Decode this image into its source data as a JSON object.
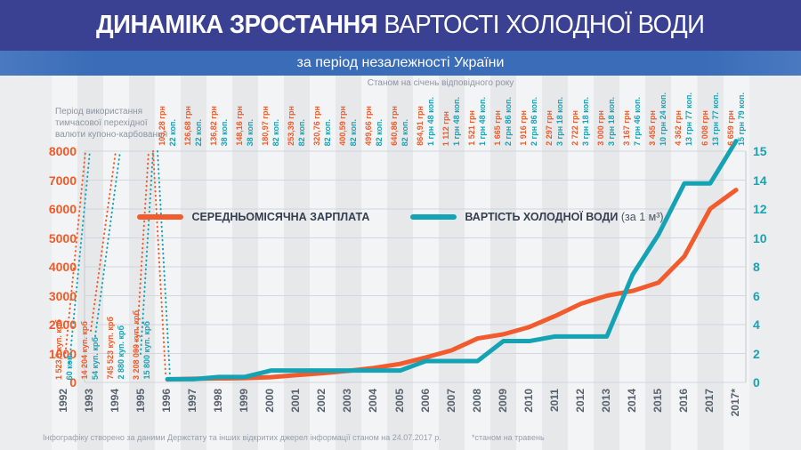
{
  "header": {
    "title_bold": "ДИНАМІКА ЗРОСТАННЯ",
    "title_rest": " ВАРТОСТІ ХОЛОДНОЇ ВОДИ",
    "subtitle": "за період незалежності України"
  },
  "annotations": {
    "top_note": "Станом на січень відповідного року",
    "left_note": "Період використання\nтимчасової перехідної\nвалюти купоно-карбованця",
    "footnote_left": "Інфографіку створено за даними Держстату та інших відкритих джерел інформації станом на  24.07.2017 р.",
    "footnote_right": "*станом на травень"
  },
  "colors": {
    "header_bg": "#3a4092",
    "subtitle_bg": "#3a6cb7",
    "salary": "#f15b2d",
    "water": "#14a3b4",
    "grid": "#d3d6da",
    "plot_border": "#c6cad0",
    "stripe_light": "#f3f4f5",
    "stripe_dark": "#e6e8ea"
  },
  "legend": {
    "items": [
      {
        "label": "СЕРЕДНЬОМІСЯЧНА ЗАРПЛАТА",
        "suffix": "",
        "color": "#f15b2d"
      },
      {
        "label": "ВАРТІСТЬ ХОЛОДНОЇ ВОДИ",
        "suffix": " (за 1 м³)",
        "color": "#14a3b4"
      }
    ]
  },
  "chart_data": {
    "type": "line",
    "title": "ДИНАМІКА ЗРОСТАННЯ ВАРТОСТІ ХОЛОДНОЇ ВОДИ за період незалежності України",
    "x": [
      "1992",
      "1993",
      "1994",
      "1995",
      "1996",
      "1997",
      "1998",
      "1999",
      "2000",
      "2001",
      "2002",
      "2003",
      "2004",
      "2005",
      "2006",
      "2007",
      "2008",
      "2009",
      "2010",
      "2011",
      "2012",
      "2013",
      "2014",
      "2015",
      "2016",
      "2017",
      "2017*"
    ],
    "series": [
      {
        "name": "СЕРЕДНЬОМІСЯЧНА ЗАРПЛАТА",
        "axis": "left",
        "color": "#f15b2d",
        "start_index": 4,
        "values": [
          103.28,
          126.68,
          136.82,
          148.16,
          180.97,
          253.39,
          320.76,
          400.59,
          499.66,
          640.86,
          864.91,
          1112,
          1521,
          1665,
          1916,
          2297,
          2722,
          3000,
          3167,
          3455,
          4362,
          6008,
          6659
        ]
      },
      {
        "name": "ВАРТІСТЬ ХОЛОДНОЇ ВОДИ (за 1 м³)",
        "axis": "right",
        "color": "#14a3b4",
        "start_index": 4,
        "values": [
          0.22,
          0.22,
          0.38,
          0.38,
          0.82,
          0.82,
          0.82,
          0.82,
          0.82,
          0.82,
          1.48,
          1.48,
          1.48,
          2.86,
          2.86,
          3.18,
          3.18,
          3.18,
          7.46,
          10.24,
          13.77,
          13.77,
          15.79
        ]
      }
    ],
    "left_axis": {
      "ticks": [
        0,
        1000,
        2000,
        3000,
        4000,
        5000,
        6000,
        7000,
        8000
      ],
      "ylim": [
        0,
        8000
      ]
    },
    "right_axis": {
      "tick_labels_bottom_to_top": [
        "0",
        "2",
        "4",
        "6",
        "8",
        "10",
        "12",
        "14",
        "15"
      ]
    },
    "grid": "horizontal",
    "legend_position": "upper-center-inside",
    "point_labels": [
      {
        "x": "1992",
        "salary": "1 523,5 куп. крб",
        "water": "60 коп.",
        "position": "bottom"
      },
      {
        "x": "1993",
        "salary": "14 204 куп. крб",
        "water": "54 куп. крб",
        "position": "bottom"
      },
      {
        "x": "1994",
        "salary": "745 523 куп. крб",
        "water": "2 880 куп. крб",
        "position": "bottom"
      },
      {
        "x": "1995",
        "salary": "3 208 000 куп. крб",
        "water": "15 800 куп. крб",
        "position": "bottom"
      },
      {
        "x": "1996",
        "salary": "103,28 грн",
        "water": "22 коп.",
        "position": "top"
      },
      {
        "x": "1997",
        "salary": "126,68 грн",
        "water": "22 коп.",
        "position": "top"
      },
      {
        "x": "1998",
        "salary": "136,82 грн",
        "water": "38 коп.",
        "position": "top"
      },
      {
        "x": "1999",
        "salary": "148,16 грн",
        "water": "38 коп.",
        "position": "top"
      },
      {
        "x": "2000",
        "salary": "180,97 грн",
        "water": "82 коп.",
        "position": "top"
      },
      {
        "x": "2001",
        "salary": "253,39 грн",
        "water": "82 коп.",
        "position": "top"
      },
      {
        "x": "2002",
        "salary": "320,76 грн",
        "water": "82 коп.",
        "position": "top"
      },
      {
        "x": "2003",
        "salary": "400,59 грн",
        "water": "82 коп.",
        "position": "top"
      },
      {
        "x": "2004",
        "salary": "499,66 грн",
        "water": "82 коп.",
        "position": "top"
      },
      {
        "x": "2005",
        "salary": "640,86 грн",
        "water": "82 коп.",
        "position": "top"
      },
      {
        "x": "2006",
        "salary": "864,91 грн",
        "water": "1 грн 48 коп.",
        "position": "top"
      },
      {
        "x": "2007",
        "salary": "1 112 грн",
        "water": "1 грн 48 коп.",
        "position": "top"
      },
      {
        "x": "2008",
        "salary": "1 521 грн",
        "water": "1 грн 48 коп.",
        "position": "top"
      },
      {
        "x": "2009",
        "salary": "1 665 грн",
        "water": "2 грн 86 коп.",
        "position": "top"
      },
      {
        "x": "2010",
        "salary": "1 916 грн",
        "water": "2 грн 86 коп.",
        "position": "top"
      },
      {
        "x": "2011",
        "salary": "2 297 грн",
        "water": "3 грн 18 коп.",
        "position": "top"
      },
      {
        "x": "2012",
        "salary": "2 722 грн",
        "water": "3 грн 18 коп.",
        "position": "top"
      },
      {
        "x": "2013",
        "salary": "3 000 грн",
        "water": "3 грн 18 коп.",
        "position": "top"
      },
      {
        "x": "2014",
        "salary": "3 167 грн",
        "water": "7 грн 46 коп.",
        "position": "top"
      },
      {
        "x": "2015",
        "salary": "3 455 грн",
        "water": "10 грн 24 коп.",
        "position": "top"
      },
      {
        "x": "2016",
        "salary": "4 362 грн",
        "water": "13 грн 77 коп.",
        "position": "top"
      },
      {
        "x": "2017",
        "salary": "6 008 грн",
        "water": "13 грн 77 коп.",
        "position": "top"
      },
      {
        "x": "2017*",
        "salary": "6 659 грн",
        "water": "15 грн 79 коп.",
        "position": "top"
      }
    ]
  }
}
